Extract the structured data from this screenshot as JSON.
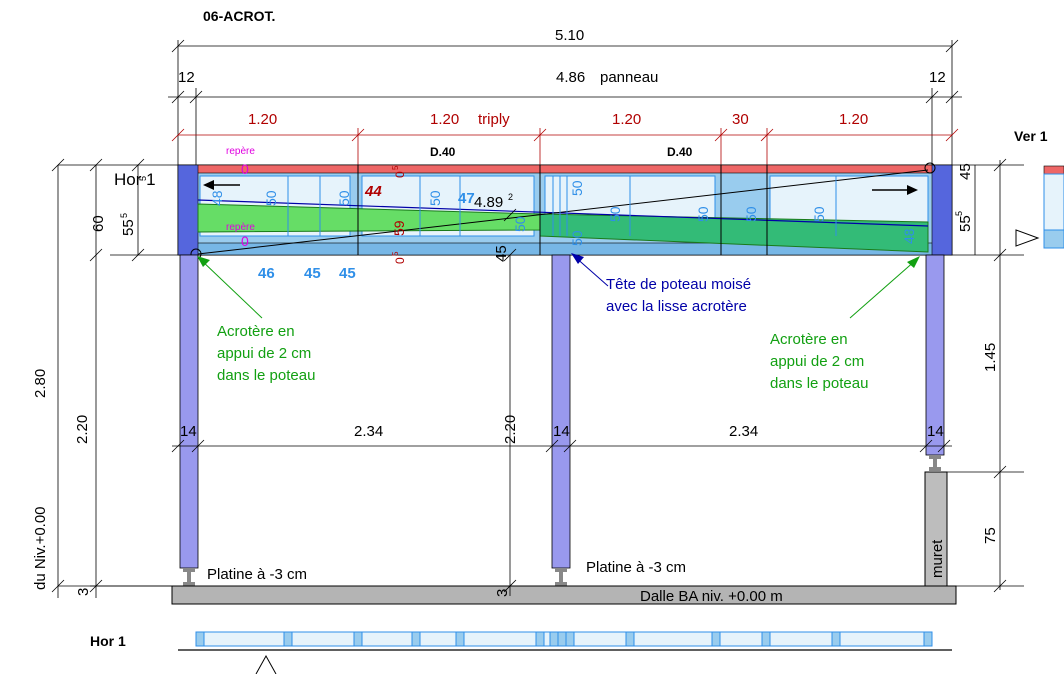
{
  "title": "06-ACROT.",
  "dims_top": {
    "overall": "5.10",
    "left_edge": "12",
    "right_edge": "12",
    "panel": "4.86",
    "panel_word": "panneau",
    "seg1": "1.20",
    "seg2": "1.20",
    "seg2_word": "triply",
    "seg3": "1.20",
    "seg4": "30",
    "seg5": "1.20"
  },
  "beam": {
    "repere_top": "repère",
    "repere_bottom": "repère",
    "d40_left": "D.40",
    "d40_right": "D.40",
    "diagonal": "4.89",
    "diagonal_sup": "2",
    "markers": {
      "m05a": "0",
      "m05a_sup": "5",
      "m05b": "0",
      "m05b_sup": "5",
      "zero_top": "0",
      "zero_bottom": "0",
      "left48": "48",
      "v50a": "50",
      "v50b": "50",
      "v44": "44",
      "v59": "59",
      "v50c": "50",
      "v47": "47",
      "v50d": "50",
      "v50e": "50",
      "v50f": "50",
      "v50g": "50",
      "v50h": "50",
      "v50i": "50",
      "v50j": "50",
      "right48": "48"
    },
    "below": {
      "a": "46",
      "b": "45",
      "c": "45"
    }
  },
  "left_dims": {
    "height60": "60",
    "height55": "55",
    "height55_sup": "5",
    "height55_small": "5",
    "height280": "2.80",
    "height220": "2.20",
    "niv": "du Niv.+0.00",
    "three": "3"
  },
  "right_dims": {
    "h45": "45",
    "h55": "55",
    "h55_sup": "5",
    "h145": "1.45",
    "h75": "75"
  },
  "mid_dims": {
    "h45": "45",
    "h220": "2.20",
    "three": "3"
  },
  "annotations": {
    "hor1_marker": "Hor 1",
    "left_note": [
      "Acrotère en",
      "appui de 2 cm",
      "dans le poteau"
    ],
    "mid_note": [
      "Tête de poteau moisé",
      "avec la lisse acrotère"
    ],
    "right_note": [
      "Acrotère en",
      "appui de 2 cm",
      "dans le poteau"
    ],
    "platine_left": "Platine à -3 cm",
    "platine_mid": "Platine à -3 cm",
    "muret": "muret",
    "slab": "Dalle BA niv. +0.00 m"
  },
  "span_dims": {
    "post_left": "14",
    "span_left": "2.34",
    "post_mid": "14",
    "span_right": "2.34",
    "post_right": "14"
  },
  "side_view": {
    "label": "Ver 1"
  },
  "bottom_strip": {
    "label": "Hor 1"
  },
  "colors": {
    "post": "#9999ee",
    "beam_cap": "#ee6666",
    "beam_body": "#99ccee",
    "brace": "#66dd66",
    "slab": "#b4b4b4"
  }
}
